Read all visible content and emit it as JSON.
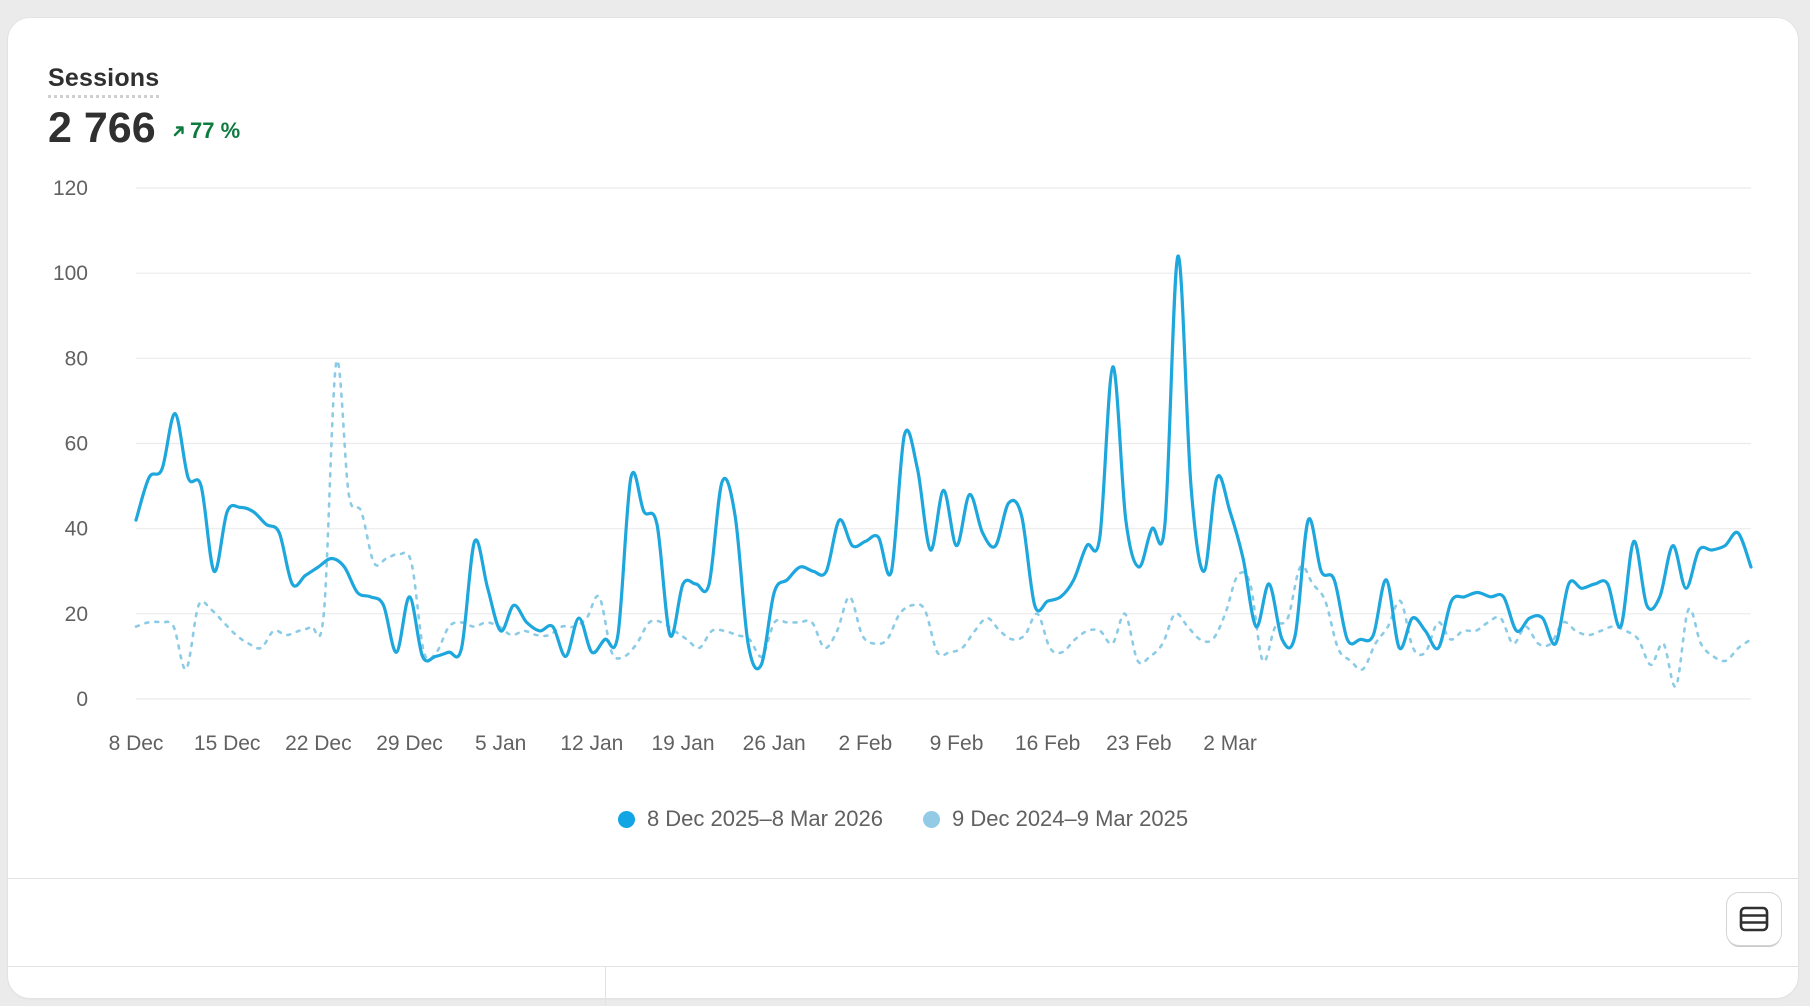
{
  "metric": {
    "title": "Sessions",
    "value": "2 766",
    "change": "77 %",
    "change_direction": "up",
    "change_color": "#0c7b3e"
  },
  "colors": {
    "current": "#1ea7dd",
    "previous": "#8ccbe6",
    "legend_current": "#12a5e3",
    "legend_previous": "#93cbe6"
  },
  "legend": {
    "current": "8 Dec 2025–8 Mar 2026",
    "previous": "9 Dec 2024–9 Mar 2025"
  },
  "chart_data": {
    "type": "line",
    "ylim": [
      0,
      120
    ],
    "y_ticks": [
      "0",
      "20",
      "40",
      "60",
      "80",
      "100",
      "120"
    ],
    "x_ticks": [
      "8 Dec",
      "15 Dec",
      "22 Dec",
      "29 Dec",
      "5 Jan",
      "12 Jan",
      "19 Jan",
      "26 Jan",
      "2 Feb",
      "9 Feb",
      "16 Feb",
      "23 Feb",
      "2 Mar"
    ],
    "grid": true,
    "legend_position": "bottom",
    "series": [
      {
        "name": "8 Dec 2025–8 Mar 2026",
        "style": "solid",
        "values": [
          42,
          52,
          54,
          67,
          52,
          50,
          30,
          44,
          45,
          44,
          41,
          39,
          27,
          29,
          31,
          33,
          31,
          25,
          24,
          22,
          11,
          24,
          10,
          10,
          11,
          12,
          37,
          26,
          16,
          22,
          18,
          16,
          17,
          10,
          19,
          11,
          14,
          15,
          52,
          44,
          41,
          15,
          27,
          27,
          27,
          51,
          43,
          13,
          8,
          25,
          28,
          31,
          30,
          30,
          42,
          36,
          37,
          38,
          30,
          62,
          54,
          35,
          49,
          36,
          48,
          39,
          36,
          46,
          43,
          22,
          23,
          24,
          28,
          36,
          38,
          78,
          42,
          31,
          40,
          41,
          104,
          50,
          30,
          52,
          44,
          33,
          17,
          27,
          14,
          15,
          42,
          30,
          28,
          14,
          14,
          15,
          28,
          12,
          19,
          16,
          12,
          23,
          24,
          25,
          24,
          24,
          16,
          19,
          19,
          13,
          27,
          26,
          27,
          27,
          17,
          37,
          22,
          24,
          36,
          26,
          35,
          35,
          36,
          39,
          31
        ]
      },
      {
        "name": "9 Dec 2024–9 Mar 2025",
        "style": "dotted",
        "values": [
          17,
          18,
          18,
          17,
          7,
          22,
          21,
          18,
          15,
          13,
          12,
          16,
          15,
          16,
          17,
          20,
          79,
          48,
          44,
          32,
          33,
          34,
          32,
          11,
          11,
          17,
          18,
          17,
          18,
          17,
          15,
          16,
          15,
          15,
          17,
          17,
          19,
          24,
          11,
          10,
          13,
          18,
          18,
          16,
          14,
          12,
          16,
          16,
          15,
          14,
          10,
          18,
          18,
          18,
          18,
          12,
          16,
          24,
          15,
          13,
          14,
          20,
          22,
          21,
          11,
          11,
          12,
          16,
          19,
          16,
          14,
          15,
          20,
          12,
          11,
          14,
          16,
          16,
          13,
          20,
          9,
          10,
          13,
          20,
          17,
          14,
          14,
          20,
          29,
          27,
          9,
          17,
          19,
          31,
          27,
          23,
          12,
          9,
          7,
          13,
          17,
          23,
          12,
          11,
          18,
          14,
          16,
          16,
          18,
          19,
          13,
          17,
          13,
          13,
          18,
          16,
          15,
          16,
          17,
          16,
          14,
          8,
          13,
          3,
          21,
          13,
          10,
          9,
          12,
          14
        ]
      }
    ]
  }
}
